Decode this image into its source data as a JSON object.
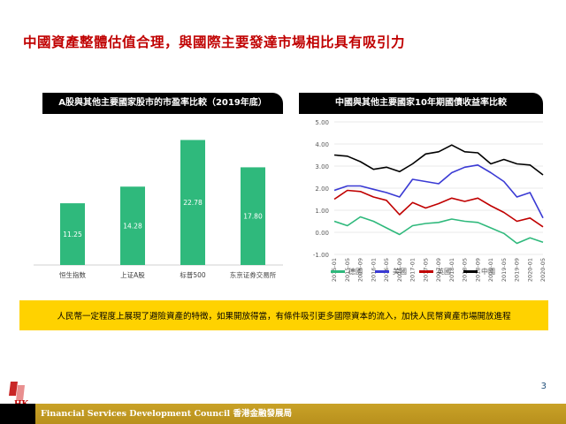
{
  "slide": {
    "title": "中國資產整體估值合理，與國際主要發達市場相比具有吸引力",
    "banner_text": "人民幣一定程度上展現了避險資產的特徵，如果開放得當，有條件吸引更多國際資本的流入，加快人民幣資產市場開放進程",
    "page_number": "3",
    "footer_text": "Financial Services Development Council  香港金融發展局",
    "logo_text": "HK"
  },
  "chart_data": [
    {
      "type": "bar",
      "title": "A股與其他主要國家股市的市盈率比較（2019年底）",
      "categories": [
        "恒生指数",
        "上证A股",
        "标普500",
        "东京证券交易所"
      ],
      "values": [
        11.25,
        14.28,
        22.78,
        17.8
      ],
      "value_labels": [
        "11.25",
        "14.28",
        "22.78",
        "17.80"
      ],
      "ylim": [
        0,
        23.5
      ],
      "grid": false,
      "color": "#2fb97c"
    },
    {
      "type": "line",
      "title": "中國與其他主要國家10年期國債收益率比較",
      "x": [
        "2015-01",
        "2015-05",
        "2015-09",
        "2016-01",
        "2016-05",
        "2016-09",
        "2017-01",
        "2017-05",
        "2017-09",
        "2018-01",
        "2018-05",
        "2018-09",
        "2019-01",
        "2019-05",
        "2019-09",
        "2020-01",
        "2020-05"
      ],
      "ylim": [
        -1.0,
        5.0
      ],
      "yticks": [
        "-1.00",
        "0.00",
        "1.00",
        "2.00",
        "3.00",
        "4.00",
        "5.00"
      ],
      "grid": true,
      "legend_position": "bottom",
      "series": [
        {
          "name": "德國",
          "color": "#2fb97c",
          "values": [
            0.5,
            0.3,
            0.7,
            0.5,
            0.2,
            -0.1,
            0.3,
            0.4,
            0.45,
            0.6,
            0.5,
            0.45,
            0.2,
            -0.05,
            -0.5,
            -0.25,
            -0.45
          ]
        },
        {
          "name": "美國",
          "color": "#3a3ad4",
          "values": [
            1.9,
            2.1,
            2.1,
            1.95,
            1.8,
            1.6,
            2.4,
            2.3,
            2.2,
            2.7,
            2.95,
            3.05,
            2.7,
            2.3,
            1.6,
            1.8,
            0.65
          ]
        },
        {
          "name": "英國",
          "color": "#c00000",
          "values": [
            1.5,
            1.9,
            1.85,
            1.6,
            1.45,
            0.8,
            1.35,
            1.1,
            1.3,
            1.55,
            1.4,
            1.55,
            1.2,
            0.9,
            0.5,
            0.65,
            0.25
          ]
        },
        {
          "name": "中國",
          "color": "#000000",
          "values": [
            3.5,
            3.45,
            3.2,
            2.85,
            2.95,
            2.75,
            3.1,
            3.55,
            3.65,
            3.95,
            3.65,
            3.6,
            3.1,
            3.3,
            3.1,
            3.05,
            2.6
          ]
        }
      ]
    }
  ]
}
